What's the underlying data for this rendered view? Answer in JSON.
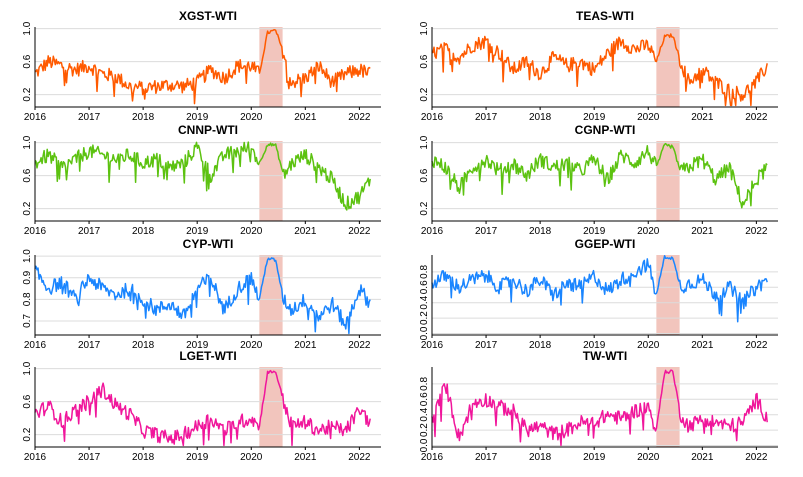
{
  "figure": {
    "shaded_period": {
      "start": 2020.15,
      "end": 2020.58,
      "color": "#f2c5bd"
    }
  },
  "chart_data": [
    {
      "type": "line",
      "title": "XGST-WTI",
      "color": "#ff5a00",
      "xlim": [
        2016,
        2022.4
      ],
      "ylim": [
        0.05,
        1.02
      ],
      "x_ticks": [
        "2016",
        "2017",
        "2018",
        "2019",
        "2020",
        "2021",
        "2022"
      ],
      "y_ticks": [
        0.2,
        0.6,
        1.0
      ],
      "y_tick_labels": [
        "0.2",
        "0.6",
        "1.0"
      ],
      "grid": true,
      "series": [
        {
          "x": [
            2016.0,
            2016.25,
            2016.5,
            2016.75,
            2017.0,
            2017.25,
            2017.5,
            2017.75,
            2018.0,
            2018.25,
            2018.5,
            2018.75,
            2019.0,
            2019.25,
            2019.5,
            2019.75,
            2020.0,
            2020.15,
            2020.3,
            2020.45,
            2020.6,
            2020.75,
            2021.0,
            2021.25,
            2021.5,
            2021.75,
            2022.0,
            2022.2
          ],
          "y": [
            0.45,
            0.6,
            0.55,
            0.5,
            0.55,
            0.45,
            0.42,
            0.3,
            0.28,
            0.3,
            0.32,
            0.3,
            0.35,
            0.5,
            0.4,
            0.55,
            0.55,
            0.45,
            0.95,
            0.98,
            0.7,
            0.35,
            0.4,
            0.55,
            0.35,
            0.45,
            0.5,
            0.45
          ]
        }
      ]
    },
    {
      "type": "line",
      "title": "TEAS-WTI",
      "color": "#ff5a00",
      "xlim": [
        2016,
        2022.4
      ],
      "ylim": [
        0.05,
        1.02
      ],
      "x_ticks": [
        "2016",
        "2017",
        "2018",
        "2019",
        "2020",
        "2021",
        "2022"
      ],
      "y_ticks": [
        0.2,
        0.6,
        1.0
      ],
      "y_tick_labels": [
        "0.2",
        "0.6",
        "1.0"
      ],
      "grid": true,
      "series": [
        {
          "x": [
            2016.0,
            2016.25,
            2016.5,
            2016.75,
            2017.0,
            2017.25,
            2017.5,
            2017.75,
            2018.0,
            2018.25,
            2018.5,
            2018.75,
            2019.0,
            2019.25,
            2019.5,
            2019.75,
            2020.0,
            2020.15,
            2020.3,
            2020.45,
            2020.6,
            2020.75,
            2021.0,
            2021.25,
            2021.5,
            2021.75,
            2022.0,
            2022.2
          ],
          "y": [
            0.7,
            0.75,
            0.65,
            0.8,
            0.85,
            0.7,
            0.5,
            0.6,
            0.45,
            0.65,
            0.55,
            0.6,
            0.5,
            0.7,
            0.85,
            0.75,
            0.8,
            0.6,
            0.9,
            0.92,
            0.6,
            0.35,
            0.5,
            0.35,
            0.25,
            0.2,
            0.35,
            0.55
          ]
        }
      ]
    },
    {
      "type": "line",
      "title": "CNNP-WTI",
      "color": "#5cc210",
      "xlim": [
        2016,
        2022.4
      ],
      "ylim": [
        0.05,
        1.02
      ],
      "x_ticks": [
        "2016",
        "2017",
        "2018",
        "2019",
        "2020",
        "2021",
        "2022"
      ],
      "y_ticks": [
        0.2,
        0.6,
        1.0
      ],
      "y_tick_labels": [
        "0.2",
        "0.6",
        "1.0"
      ],
      "grid": true,
      "series": [
        {
          "x": [
            2016.0,
            2016.25,
            2016.5,
            2016.75,
            2017.0,
            2017.25,
            2017.5,
            2017.75,
            2018.0,
            2018.25,
            2018.5,
            2018.75,
            2019.0,
            2019.25,
            2019.5,
            2019.75,
            2020.0,
            2020.15,
            2020.3,
            2020.45,
            2020.6,
            2020.75,
            2021.0,
            2021.25,
            2021.5,
            2021.75,
            2022.0,
            2022.2
          ],
          "y": [
            0.75,
            0.85,
            0.7,
            0.8,
            0.9,
            0.85,
            0.8,
            0.85,
            0.75,
            0.8,
            0.7,
            0.75,
            0.95,
            0.6,
            0.85,
            0.9,
            0.95,
            0.75,
            0.98,
            0.97,
            0.6,
            0.75,
            0.85,
            0.7,
            0.55,
            0.25,
            0.35,
            0.55
          ]
        }
      ]
    },
    {
      "type": "line",
      "title": "CGNP-WTI",
      "color": "#5cc210",
      "xlim": [
        2016,
        2022.4
      ],
      "ylim": [
        0.05,
        1.02
      ],
      "x_ticks": [
        "2016",
        "2017",
        "2018",
        "2019",
        "2020",
        "2021",
        "2022"
      ],
      "y_ticks": [
        0.2,
        0.6,
        1.0
      ],
      "y_tick_labels": [
        "0.2",
        "0.6",
        "1.0"
      ],
      "grid": true,
      "series": [
        {
          "x": [
            2016.0,
            2016.25,
            2016.5,
            2016.75,
            2017.0,
            2017.25,
            2017.5,
            2017.75,
            2018.0,
            2018.25,
            2018.5,
            2018.75,
            2019.0,
            2019.25,
            2019.5,
            2019.75,
            2020.0,
            2020.15,
            2020.3,
            2020.45,
            2020.6,
            2020.75,
            2021.0,
            2021.25,
            2021.5,
            2021.75,
            2022.0,
            2022.2
          ],
          "y": [
            0.8,
            0.7,
            0.45,
            0.7,
            0.8,
            0.65,
            0.75,
            0.6,
            0.8,
            0.7,
            0.75,
            0.65,
            0.8,
            0.55,
            0.85,
            0.75,
            0.9,
            0.7,
            0.97,
            0.95,
            0.65,
            0.7,
            0.8,
            0.55,
            0.7,
            0.25,
            0.55,
            0.7
          ]
        }
      ]
    },
    {
      "type": "line",
      "title": "CYP-WTI",
      "color": "#1a85ff",
      "xlim": [
        2016,
        2022.4
      ],
      "ylim": [
        0.635,
        1.005
      ],
      "x_ticks": [
        "2016",
        "2017",
        "2018",
        "2019",
        "2020",
        "2021",
        "2022"
      ],
      "y_ticks": [
        0.7,
        0.8,
        0.9,
        1.0
      ],
      "y_tick_labels": [
        "0.7",
        "0.8",
        "0.9",
        "1.0"
      ],
      "grid": true,
      "series": [
        {
          "x": [
            2016.0,
            2016.25,
            2016.5,
            2016.75,
            2017.0,
            2017.25,
            2017.5,
            2017.75,
            2018.0,
            2018.25,
            2018.5,
            2018.75,
            2019.0,
            2019.25,
            2019.5,
            2019.75,
            2020.0,
            2020.15,
            2020.3,
            2020.45,
            2020.6,
            2020.75,
            2021.0,
            2021.25,
            2021.5,
            2021.75,
            2022.0,
            2022.2
          ],
          "y": [
            0.93,
            0.85,
            0.88,
            0.8,
            0.9,
            0.85,
            0.82,
            0.85,
            0.8,
            0.75,
            0.78,
            0.72,
            0.85,
            0.9,
            0.75,
            0.85,
            0.9,
            0.8,
            0.99,
            0.98,
            0.8,
            0.75,
            0.8,
            0.72,
            0.78,
            0.68,
            0.85,
            0.78
          ]
        }
      ]
    },
    {
      "type": "line",
      "title": "GGEP-WTI",
      "color": "#1a85ff",
      "xlim": [
        2016,
        2022.4
      ],
      "ylim": [
        -0.02,
        1.02
      ],
      "x_ticks": [
        "2016",
        "2017",
        "2018",
        "2019",
        "2020",
        "2021",
        "2022"
      ],
      "y_ticks": [
        0.0,
        0.2,
        0.4,
        0.6,
        0.8
      ],
      "y_tick_labels": [
        "0.0",
        "0.2",
        "0.4",
        "0.6",
        "0.8"
      ],
      "grid": true,
      "series": [
        {
          "x": [
            2016.0,
            2016.25,
            2016.5,
            2016.75,
            2017.0,
            2017.25,
            2017.5,
            2017.75,
            2018.0,
            2018.25,
            2018.5,
            2018.75,
            2019.0,
            2019.25,
            2019.5,
            2019.75,
            2020.0,
            2020.15,
            2020.3,
            2020.45,
            2020.6,
            2020.75,
            2021.0,
            2021.25,
            2021.5,
            2021.75,
            2022.0,
            2022.2
          ],
          "y": [
            0.65,
            0.75,
            0.6,
            0.7,
            0.75,
            0.6,
            0.7,
            0.55,
            0.7,
            0.5,
            0.65,
            0.6,
            0.75,
            0.55,
            0.7,
            0.8,
            0.9,
            0.5,
            1.0,
            0.98,
            0.6,
            0.65,
            0.7,
            0.5,
            0.6,
            0.4,
            0.6,
            0.7
          ]
        }
      ]
    },
    {
      "type": "line",
      "title": "LGET-WTI",
      "color": "#f0169b",
      "xlim": [
        2016,
        2022.4
      ],
      "ylim": [
        0.05,
        1.02
      ],
      "x_ticks": [
        "2016",
        "2017",
        "2018",
        "2019",
        "2020",
        "2021",
        "2022"
      ],
      "y_ticks": [
        0.2,
        0.6,
        1.0
      ],
      "y_tick_labels": [
        "0.2",
        "0.6",
        "1.0"
      ],
      "grid": true,
      "series": [
        {
          "x": [
            2016.0,
            2016.25,
            2016.5,
            2016.75,
            2017.0,
            2017.25,
            2017.5,
            2017.75,
            2018.0,
            2018.25,
            2018.5,
            2018.75,
            2019.0,
            2019.25,
            2019.5,
            2019.75,
            2020.0,
            2020.15,
            2020.3,
            2020.45,
            2020.6,
            2020.75,
            2021.0,
            2021.25,
            2021.5,
            2021.75,
            2022.0,
            2022.2
          ],
          "y": [
            0.45,
            0.55,
            0.35,
            0.5,
            0.6,
            0.75,
            0.55,
            0.45,
            0.25,
            0.2,
            0.15,
            0.2,
            0.3,
            0.4,
            0.25,
            0.35,
            0.4,
            0.3,
            0.95,
            0.97,
            0.6,
            0.3,
            0.35,
            0.25,
            0.3,
            0.25,
            0.5,
            0.35
          ]
        }
      ]
    },
    {
      "type": "line",
      "title": "TW-WTI",
      "color": "#f0169b",
      "xlim": [
        2016,
        2022.4
      ],
      "ylim": [
        -0.02,
        1.02
      ],
      "x_ticks": [
        "2016",
        "2017",
        "2018",
        "2019",
        "2020",
        "2021",
        "2022"
      ],
      "y_ticks": [
        0.0,
        0.2,
        0.4,
        0.6,
        0.8
      ],
      "y_tick_labels": [
        "0.0",
        "0.2",
        "0.4",
        "0.6",
        "0.8"
      ],
      "grid": true,
      "series": [
        {
          "x": [
            2016.0,
            2016.25,
            2016.5,
            2016.75,
            2017.0,
            2017.25,
            2017.5,
            2017.75,
            2018.0,
            2018.25,
            2018.5,
            2018.75,
            2019.0,
            2019.25,
            2019.5,
            2019.75,
            2020.0,
            2020.15,
            2020.3,
            2020.45,
            2020.6,
            2020.75,
            2021.0,
            2021.25,
            2021.5,
            2021.75,
            2022.0,
            2022.2
          ],
          "y": [
            0.3,
            0.8,
            0.1,
            0.55,
            0.6,
            0.5,
            0.45,
            0.2,
            0.25,
            0.15,
            0.2,
            0.3,
            0.3,
            0.4,
            0.35,
            0.45,
            0.5,
            0.2,
            0.95,
            0.97,
            0.4,
            0.25,
            0.35,
            0.3,
            0.25,
            0.3,
            0.6,
            0.35
          ]
        }
      ]
    }
  ]
}
